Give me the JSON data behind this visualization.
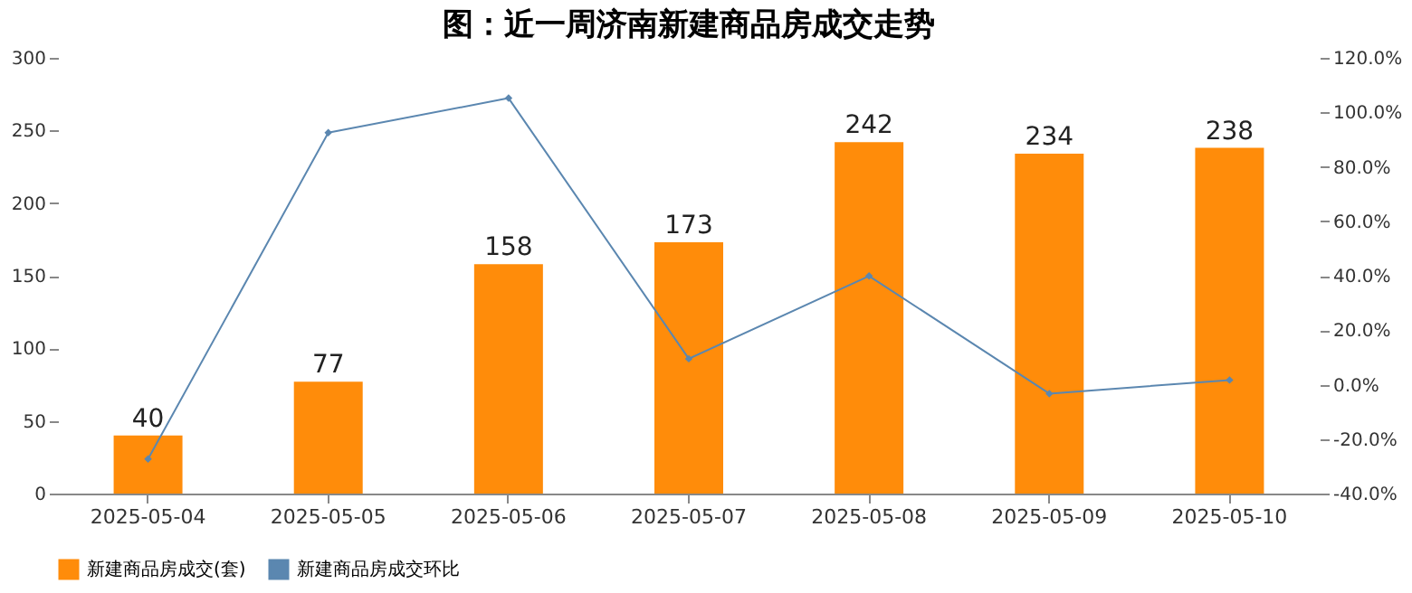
{
  "chart_data": {
    "type": "bar",
    "title": "图：近一周济南新建商品房成交走势",
    "categories": [
      "2025-05-04",
      "2025-05-05",
      "2025-05-06",
      "2025-05-07",
      "2025-05-08",
      "2025-05-09",
      "2025-05-10"
    ],
    "series": [
      {
        "name": "新建商品房成交(套)",
        "color": "#ff8c0a",
        "values": [
          40,
          77,
          158,
          173,
          242,
          234,
          238
        ],
        "value_labels": [
          "40",
          "77",
          "158",
          "173",
          "242",
          "234",
          "238"
        ]
      },
      {
        "name": "新建商品房成交环比",
        "type": "line",
        "axis": "y2",
        "color": "#5b87b0",
        "marker": "diamond",
        "values": [
          -27.3,
          92.5,
          105.2,
          9.5,
          39.9,
          -3.3,
          1.7
        ]
      }
    ],
    "ylim": [
      0,
      300
    ],
    "yticks": [
      0,
      50,
      100,
      150,
      200,
      250,
      300
    ],
    "y2lim": [
      -40,
      120
    ],
    "y2ticks": [
      {
        "value": -40,
        "label": "-40.0%"
      },
      {
        "value": -20,
        "label": "-20.0%"
      },
      {
        "value": 0,
        "label": "0.0%"
      },
      {
        "value": 20,
        "label": "20.0%"
      },
      {
        "value": 40,
        "label": "40.0%"
      },
      {
        "value": 60,
        "label": "60.0%"
      },
      {
        "value": 80,
        "label": "80.0%"
      },
      {
        "value": 100,
        "label": "100.0%"
      },
      {
        "value": 120,
        "label": "120.0%"
      }
    ],
    "grid": false,
    "legend": "bottom"
  }
}
